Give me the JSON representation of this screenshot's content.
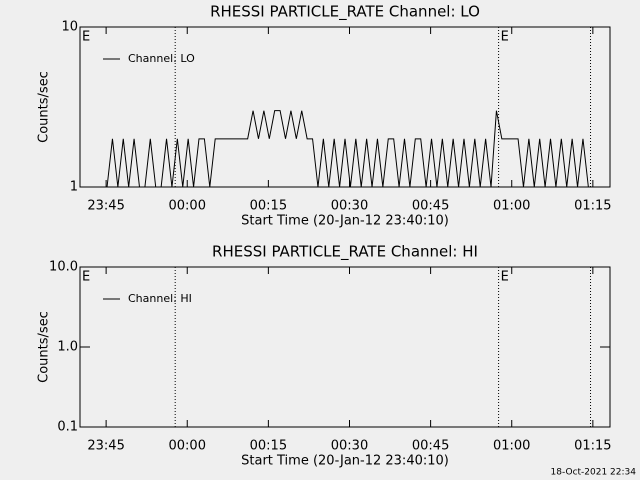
{
  "chart_data": [
    {
      "type": "line",
      "title": "RHESSI PARTICLE_RATE Channel: LO",
      "xlabel": "Start Time (20-Jan-12 23:40:10)",
      "ylabel": "Counts/sec",
      "log_y": true,
      "xlim": [
        0,
        98
      ],
      "ylim": [
        1,
        10
      ],
      "xticks": [
        {
          "value": 4.83,
          "label": "23:45"
        },
        {
          "value": 19.83,
          "label": "00:00"
        },
        {
          "value": 34.83,
          "label": "00:15"
        },
        {
          "value": 49.83,
          "label": "00:30"
        },
        {
          "value": 64.83,
          "label": "00:45"
        },
        {
          "value": 79.83,
          "label": "01:00"
        },
        {
          "value": 94.83,
          "label": "01:15"
        }
      ],
      "yticks": [
        1,
        10
      ],
      "vlines": [
        17.6,
        77.4,
        94.4
      ],
      "annotations": [
        {
          "x": 0,
          "text": "E"
        },
        {
          "x": 77.4,
          "text": "E"
        }
      ],
      "legend": "upper left",
      "x": [
        5,
        6,
        7,
        8,
        9,
        10,
        11,
        12,
        13,
        14,
        15,
        16,
        17,
        18,
        19,
        20,
        21,
        22,
        23,
        24,
        25,
        26,
        27,
        28,
        29,
        30,
        31,
        32,
        33,
        34,
        35,
        36,
        37,
        38,
        39,
        40,
        41,
        42,
        43,
        44,
        45,
        46,
        47,
        48,
        49,
        50,
        51,
        52,
        53,
        54,
        55,
        56,
        57,
        58,
        59,
        60,
        61,
        62,
        63,
        64,
        65,
        66,
        67,
        68,
        69,
        70,
        71,
        72,
        73,
        74,
        75,
        76,
        77,
        78,
        79,
        80,
        81,
        82,
        83,
        84,
        85,
        86,
        87,
        88,
        89,
        90,
        91,
        92,
        93,
        94
      ],
      "series": [
        {
          "name": "Channel: LO",
          "color": "#000000",
          "values": [
            1,
            2,
            1,
            2,
            1,
            2,
            1,
            1,
            2,
            1,
            1,
            2,
            1,
            2,
            1,
            2,
            1,
            2,
            2,
            1,
            2,
            2,
            2,
            2,
            2,
            2,
            2,
            3,
            2,
            3,
            2,
            3,
            3,
            2,
            3,
            2,
            3,
            2,
            2,
            1,
            2,
            1,
            2,
            1,
            2,
            1,
            2,
            1,
            2,
            1,
            2,
            1,
            2,
            2,
            1,
            2,
            1,
            2,
            2,
            1,
            2,
            1,
            2,
            1,
            2,
            1,
            2,
            1,
            2,
            1,
            2,
            1,
            3,
            2,
            2,
            2,
            2,
            1,
            2,
            1,
            2,
            1,
            2,
            1,
            2,
            1,
            2,
            1,
            2,
            1
          ]
        }
      ]
    },
    {
      "type": "line",
      "title": "RHESSI PARTICLE_RATE Channel: HI",
      "xlabel": "Start Time (20-Jan-12 23:40:10)",
      "ylabel": "Counts/sec",
      "log_y": true,
      "xlim": [
        0,
        98
      ],
      "ylim": [
        0.1,
        10
      ],
      "xticks": [
        {
          "value": 4.83,
          "label": "23:45"
        },
        {
          "value": 19.83,
          "label": "00:00"
        },
        {
          "value": 34.83,
          "label": "00:15"
        },
        {
          "value": 49.83,
          "label": "00:30"
        },
        {
          "value": 64.83,
          "label": "00:45"
        },
        {
          "value": 79.83,
          "label": "01:00"
        },
        {
          "value": 94.83,
          "label": "01:15"
        }
      ],
      "yticks": [
        0.1,
        {
          "value": 1,
          "label": "1.0"
        },
        {
          "value": 10,
          "label": "10.0"
        }
      ],
      "vlines": [
        17.6,
        77.4,
        94.4
      ],
      "annotations": [
        {
          "x": 0,
          "text": "E"
        },
        {
          "x": 77.4,
          "text": "E"
        }
      ],
      "legend": "upper left",
      "x": [],
      "series": [
        {
          "name": "Channel: HI",
          "color": "#000000",
          "values": []
        }
      ]
    }
  ],
  "footer": "18-Oct-2021 22:34"
}
